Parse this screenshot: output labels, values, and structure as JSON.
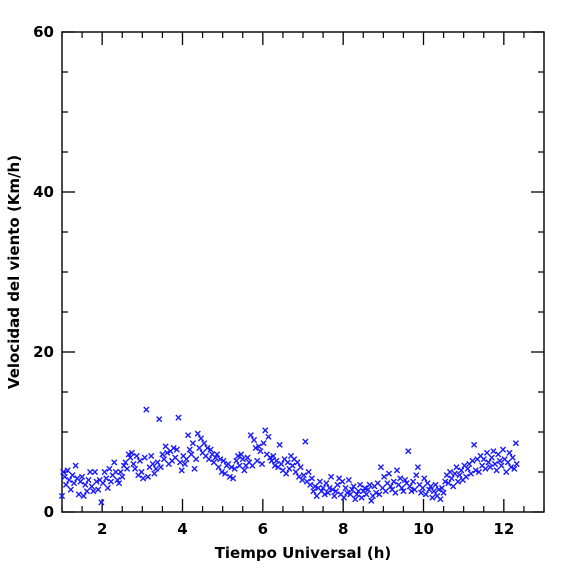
{
  "chart_data": {
    "type": "scatter",
    "title": "",
    "xlabel": "Tiempo Universal (h)",
    "ylabel": "Velocidad del viento (Km/h)",
    "xlim": [
      1,
      13
    ],
    "ylim": [
      0,
      60
    ],
    "x_ticks": [
      2,
      4,
      6,
      8,
      10,
      12
    ],
    "y_ticks": [
      0,
      20,
      40,
      60
    ],
    "x_tick_labels": [
      "2",
      "4",
      "6",
      "8",
      "10",
      "12"
    ],
    "y_tick_labels": [
      "0",
      "20",
      "40",
      "60"
    ],
    "marker": "x",
    "marker_color": "#1a1aff",
    "grid": false,
    "legend": "none",
    "series": [
      {
        "points": [
          [
            1.0,
            2.0
          ],
          [
            1.03,
            5.0
          ],
          [
            1.07,
            4.4
          ],
          [
            1.1,
            3.4
          ],
          [
            1.14,
            5.2
          ],
          [
            1.18,
            4.0
          ],
          [
            1.22,
            2.8
          ],
          [
            1.26,
            4.6
          ],
          [
            1.3,
            3.6
          ],
          [
            1.34,
            5.8
          ],
          [
            1.38,
            4.2
          ],
          [
            1.42,
            2.2
          ],
          [
            1.46,
            3.8
          ],
          [
            1.5,
            4.4
          ],
          [
            1.54,
            2.0
          ],
          [
            1.58,
            3.4
          ],
          [
            1.62,
            2.6
          ],
          [
            1.66,
            4.0
          ],
          [
            1.7,
            5.0
          ],
          [
            1.74,
            3.2
          ],
          [
            1.78,
            2.6
          ],
          [
            1.82,
            5.0
          ],
          [
            1.86,
            3.8
          ],
          [
            1.9,
            2.8
          ],
          [
            1.94,
            4.0
          ],
          [
            1.98,
            1.2
          ],
          [
            2.02,
            3.6
          ],
          [
            2.06,
            5.0
          ],
          [
            2.1,
            4.2
          ],
          [
            2.14,
            3.0
          ],
          [
            2.18,
            5.4
          ],
          [
            2.22,
            3.8
          ],
          [
            2.26,
            4.6
          ],
          [
            2.3,
            6.2
          ],
          [
            2.34,
            5.0
          ],
          [
            2.38,
            4.0
          ],
          [
            2.42,
            3.6
          ],
          [
            2.46,
            5.0
          ],
          [
            2.5,
            4.4
          ],
          [
            2.54,
            5.8
          ],
          [
            2.58,
            6.2
          ],
          [
            2.62,
            5.4
          ],
          [
            2.66,
            7.2
          ],
          [
            2.7,
            6.8
          ],
          [
            2.74,
            7.4
          ],
          [
            2.78,
            6.0
          ],
          [
            2.82,
            5.4
          ],
          [
            2.86,
            7.0
          ],
          [
            2.9,
            4.6
          ],
          [
            2.94,
            6.4
          ],
          [
            2.98,
            5.0
          ],
          [
            3.02,
            4.2
          ],
          [
            3.06,
            6.8
          ],
          [
            3.1,
            12.8
          ],
          [
            3.14,
            4.4
          ],
          [
            3.18,
            5.6
          ],
          [
            3.22,
            7.0
          ],
          [
            3.26,
            6.0
          ],
          [
            3.3,
            4.8
          ],
          [
            3.34,
            5.4
          ],
          [
            3.38,
            6.2
          ],
          [
            3.42,
            11.6
          ],
          [
            3.46,
            5.6
          ],
          [
            3.5,
            7.2
          ],
          [
            3.54,
            6.6
          ],
          [
            3.58,
            8.2
          ],
          [
            3.62,
            7.4
          ],
          [
            3.66,
            6.0
          ],
          [
            3.7,
            7.6
          ],
          [
            3.74,
            6.4
          ],
          [
            3.78,
            8.0
          ],
          [
            3.82,
            6.8
          ],
          [
            3.86,
            7.8
          ],
          [
            3.9,
            11.8
          ],
          [
            3.94,
            6.2
          ],
          [
            3.98,
            5.2
          ],
          [
            4.02,
            7.0
          ],
          [
            4.06,
            6.0
          ],
          [
            4.1,
            6.6
          ],
          [
            4.14,
            9.6
          ],
          [
            4.18,
            7.8
          ],
          [
            4.22,
            7.2
          ],
          [
            4.26,
            8.6
          ],
          [
            4.3,
            5.4
          ],
          [
            4.34,
            6.6
          ],
          [
            4.38,
            9.8
          ],
          [
            4.42,
            8.0
          ],
          [
            4.46,
            9.2
          ],
          [
            4.5,
            7.4
          ],
          [
            4.54,
            8.6
          ],
          [
            4.58,
            7.0
          ],
          [
            4.62,
            8.0
          ],
          [
            4.66,
            6.6
          ],
          [
            4.7,
            7.8
          ],
          [
            4.74,
            7.2
          ],
          [
            4.78,
            6.2
          ],
          [
            4.82,
            6.8
          ],
          [
            4.86,
            7.2
          ],
          [
            4.9,
            5.6
          ],
          [
            4.94,
            6.6
          ],
          [
            4.98,
            5.0
          ],
          [
            5.02,
            6.4
          ],
          [
            5.06,
            4.8
          ],
          [
            5.1,
            5.8
          ],
          [
            5.14,
            6.0
          ],
          [
            5.18,
            4.4
          ],
          [
            5.22,
            5.6
          ],
          [
            5.26,
            4.2
          ],
          [
            5.3,
            5.4
          ],
          [
            5.34,
            6.4
          ],
          [
            5.38,
            7.0
          ],
          [
            5.42,
            5.8
          ],
          [
            5.46,
            7.2
          ],
          [
            5.5,
            6.6
          ],
          [
            5.54,
            5.2
          ],
          [
            5.58,
            5.8
          ],
          [
            5.62,
            6.8
          ],
          [
            5.66,
            6.2
          ],
          [
            5.7,
            9.6
          ],
          [
            5.74,
            5.8
          ],
          [
            5.78,
            9.0
          ],
          [
            5.82,
            8.0
          ],
          [
            5.86,
            6.4
          ],
          [
            5.9,
            8.2
          ],
          [
            5.94,
            7.6
          ],
          [
            5.98,
            6.0
          ],
          [
            6.02,
            8.6
          ],
          [
            6.06,
            10.2
          ],
          [
            6.1,
            7.2
          ],
          [
            6.14,
            9.4
          ],
          [
            6.18,
            6.8
          ],
          [
            6.22,
            6.4
          ],
          [
            6.26,
            7.0
          ],
          [
            6.3,
            5.8
          ],
          [
            6.34,
            6.4
          ],
          [
            6.38,
            5.6
          ],
          [
            6.42,
            8.4
          ],
          [
            6.46,
            6.0
          ],
          [
            6.5,
            5.2
          ],
          [
            6.54,
            6.6
          ],
          [
            6.58,
            4.8
          ],
          [
            6.62,
            6.2
          ],
          [
            6.66,
            5.4
          ],
          [
            6.7,
            7.0
          ],
          [
            6.74,
            5.8
          ],
          [
            6.78,
            6.6
          ],
          [
            6.82,
            5.0
          ],
          [
            6.86,
            6.2
          ],
          [
            6.9,
            4.4
          ],
          [
            6.94,
            5.6
          ],
          [
            6.98,
            4.0
          ],
          [
            7.02,
            4.6
          ],
          [
            7.06,
            8.8
          ],
          [
            7.1,
            3.8
          ],
          [
            7.14,
            5.0
          ],
          [
            7.18,
            3.4
          ],
          [
            7.22,
            4.2
          ],
          [
            7.26,
            2.6
          ],
          [
            7.3,
            3.2
          ],
          [
            7.34,
            2.0
          ],
          [
            7.38,
            3.0
          ],
          [
            7.42,
            3.8
          ],
          [
            7.46,
            2.6
          ],
          [
            7.5,
            3.0
          ],
          [
            7.54,
            2.2
          ],
          [
            7.58,
            3.6
          ],
          [
            7.62,
            2.4
          ],
          [
            7.66,
            3.0
          ],
          [
            7.7,
            4.4
          ],
          [
            7.74,
            2.8
          ],
          [
            7.78,
            2.0
          ],
          [
            7.82,
            2.6
          ],
          [
            7.86,
            3.4
          ],
          [
            7.9,
            4.2
          ],
          [
            7.94,
            2.2
          ],
          [
            7.98,
            3.8
          ],
          [
            8.02,
            1.8
          ],
          [
            8.06,
            3.0
          ],
          [
            8.1,
            2.4
          ],
          [
            8.14,
            4.0
          ],
          [
            8.18,
            2.2
          ],
          [
            8.22,
            2.8
          ],
          [
            8.26,
            3.2
          ],
          [
            8.3,
            1.6
          ],
          [
            8.34,
            2.2
          ],
          [
            8.38,
            2.6
          ],
          [
            8.42,
            3.4
          ],
          [
            8.46,
            1.8
          ],
          [
            8.5,
            2.6
          ],
          [
            8.54,
            3.0
          ],
          [
            8.58,
            2.2
          ],
          [
            8.62,
            2.8
          ],
          [
            8.66,
            3.4
          ],
          [
            8.7,
            1.4
          ],
          [
            8.74,
            2.0
          ],
          [
            8.78,
            3.2
          ],
          [
            8.82,
            2.4
          ],
          [
            8.86,
            3.6
          ],
          [
            8.9,
            2.2
          ],
          [
            8.94,
            5.6
          ],
          [
            8.98,
            3.0
          ],
          [
            9.02,
            4.4
          ],
          [
            9.06,
            2.6
          ],
          [
            9.1,
            3.6
          ],
          [
            9.14,
            4.8
          ],
          [
            9.18,
            3.2
          ],
          [
            9.22,
            2.8
          ],
          [
            9.26,
            3.8
          ],
          [
            9.3,
            2.4
          ],
          [
            9.34,
            5.2
          ],
          [
            9.38,
            3.4
          ],
          [
            9.42,
            4.2
          ],
          [
            9.46,
            3.0
          ],
          [
            9.5,
            2.6
          ],
          [
            9.54,
            4.0
          ],
          [
            9.58,
            3.6
          ],
          [
            9.62,
            7.6
          ],
          [
            9.66,
            3.2
          ],
          [
            9.7,
            2.6
          ],
          [
            9.74,
            3.8
          ],
          [
            9.78,
            2.8
          ],
          [
            9.82,
            4.6
          ],
          [
            9.86,
            5.6
          ],
          [
            9.9,
            3.4
          ],
          [
            9.94,
            2.4
          ],
          [
            9.98,
            3.0
          ],
          [
            10.02,
            4.2
          ],
          [
            10.06,
            2.2
          ],
          [
            10.1,
            3.6
          ],
          [
            10.14,
            2.8
          ],
          [
            10.18,
            3.2
          ],
          [
            10.22,
            1.8
          ],
          [
            10.26,
            2.6
          ],
          [
            10.3,
            3.4
          ],
          [
            10.34,
            2.0
          ],
          [
            10.38,
            2.8
          ],
          [
            10.42,
            1.6
          ],
          [
            10.46,
            3.0
          ],
          [
            10.5,
            2.4
          ],
          [
            10.54,
            3.8
          ],
          [
            10.58,
            4.6
          ],
          [
            10.62,
            3.6
          ],
          [
            10.66,
            5.0
          ],
          [
            10.7,
            4.2
          ],
          [
            10.74,
            3.2
          ],
          [
            10.78,
            4.8
          ],
          [
            10.82,
            5.6
          ],
          [
            10.86,
            3.8
          ],
          [
            10.9,
            4.6
          ],
          [
            10.94,
            5.2
          ],
          [
            10.98,
            4.0
          ],
          [
            11.02,
            5.8
          ],
          [
            11.06,
            4.4
          ],
          [
            11.1,
            5.4
          ],
          [
            11.14,
            6.0
          ],
          [
            11.18,
            4.8
          ],
          [
            11.22,
            6.4
          ],
          [
            11.26,
            8.4
          ],
          [
            11.3,
            5.2
          ],
          [
            11.34,
            6.6
          ],
          [
            11.38,
            5.0
          ],
          [
            11.42,
            7.0
          ],
          [
            11.46,
            5.8
          ],
          [
            11.5,
            6.6
          ],
          [
            11.54,
            5.4
          ],
          [
            11.58,
            7.4
          ],
          [
            11.62,
            6.2
          ],
          [
            11.66,
            5.6
          ],
          [
            11.7,
            6.8
          ],
          [
            11.74,
            7.6
          ],
          [
            11.78,
            6.0
          ],
          [
            11.82,
            5.2
          ],
          [
            11.86,
            7.2
          ],
          [
            11.9,
            6.4
          ],
          [
            11.94,
            5.8
          ],
          [
            11.98,
            7.8
          ],
          [
            12.02,
            6.6
          ],
          [
            12.06,
            5.0
          ],
          [
            12.1,
            6.2
          ],
          [
            12.14,
            7.4
          ],
          [
            12.18,
            5.6
          ],
          [
            12.22,
            6.8
          ],
          [
            12.26,
            5.4
          ],
          [
            12.3,
            8.6
          ],
          [
            12.32,
            6.0
          ]
        ]
      }
    ]
  }
}
